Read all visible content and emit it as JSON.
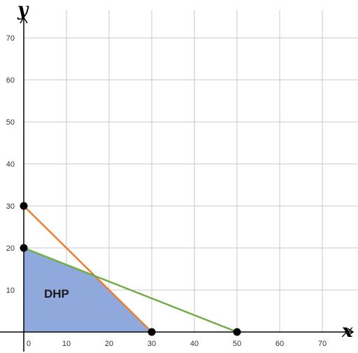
{
  "chart_data": {
    "type": "line",
    "title": "",
    "xlabel": "x",
    "ylabel": "y",
    "xlim": [
      0,
      70
    ],
    "ylim": [
      0,
      70
    ],
    "x_ticks": [
      "0",
      "10",
      "20",
      "30",
      "40",
      "50",
      "60",
      "70"
    ],
    "y_ticks": [
      "10",
      "20",
      "30",
      "40",
      "50",
      "60",
      "70"
    ],
    "grid": true,
    "region_label": "DHP",
    "series": [
      {
        "points": [
          [
            0,
            30
          ],
          [
            30,
            0
          ]
        ],
        "color": "#ed7d31"
      },
      {
        "points": [
          [
            0,
            20
          ],
          [
            50,
            0
          ]
        ],
        "color": "#70ad47"
      }
    ],
    "feasible_region": {
      "vertices": [
        [
          0,
          0
        ],
        [
          0,
          20
        ],
        [
          16.67,
          13.33
        ],
        [
          30,
          0
        ]
      ],
      "color": "#8fa9dc"
    },
    "marked_points": [
      [
        0,
        30
      ],
      [
        0,
        20
      ],
      [
        30,
        0
      ],
      [
        50,
        0
      ]
    ],
    "colors": {
      "grid": "#c8c8c8",
      "axis": "#000000",
      "point": "#000000"
    }
  }
}
